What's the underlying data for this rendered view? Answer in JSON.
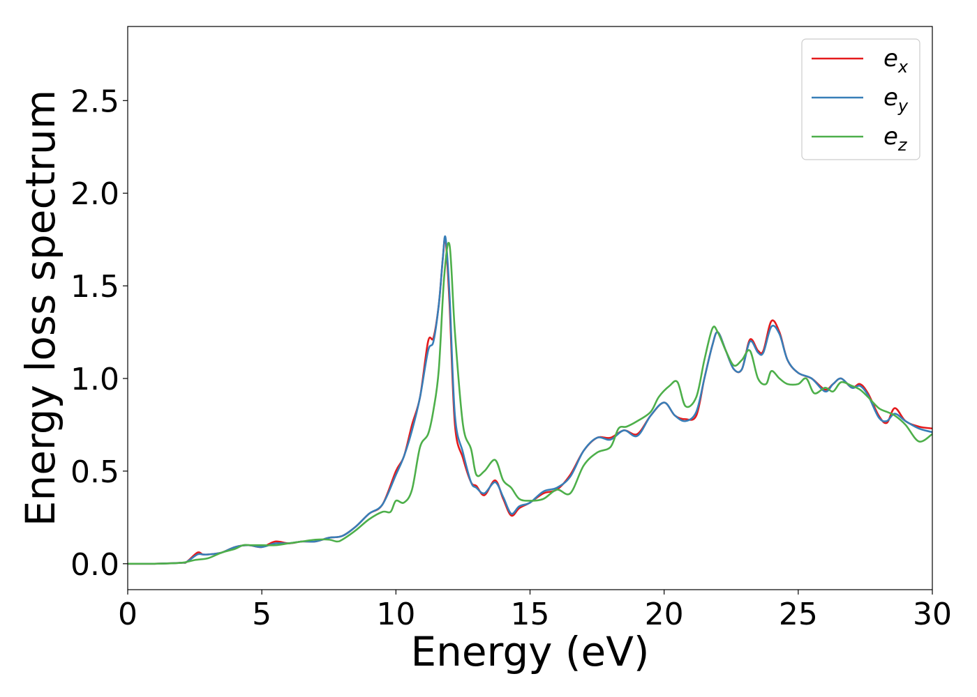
{
  "chart_data": {
    "type": "line",
    "xlabel": "Energy (eV)",
    "ylabel": "Energy loss spectrum",
    "xlim": [
      0,
      30
    ],
    "ylim": [
      -0.14,
      2.9
    ],
    "xticks": [
      "0",
      "5",
      "10",
      "15",
      "20",
      "25",
      "30"
    ],
    "xtick_values": [
      0,
      5,
      10,
      15,
      20,
      25,
      30
    ],
    "yticks": [
      "0.0",
      "0.5",
      "1.0",
      "1.5",
      "2.0",
      "2.5"
    ],
    "ytick_values": [
      0.0,
      0.5,
      1.0,
      1.5,
      2.0,
      2.5
    ],
    "grid": false,
    "legend_position": "top-right",
    "series": [
      {
        "name": "e_x",
        "label_base": "e",
        "label_sub": "x",
        "color": "#e41a1c",
        "x": [
          0,
          1,
          2,
          2.2,
          2.6,
          2.8,
          3.0,
          3.5,
          4.0,
          4.5,
          5.0,
          5.5,
          6.0,
          6.5,
          7.0,
          7.5,
          8.0,
          8.5,
          9.0,
          9.5,
          10.0,
          10.3,
          10.6,
          10.9,
          11.2,
          11.4,
          11.6,
          11.75,
          11.85,
          12.0,
          12.2,
          12.5,
          12.8,
          13.0,
          13.3,
          13.7,
          14.0,
          14.3,
          14.6,
          15.0,
          15.5,
          16.0,
          16.5,
          17.0,
          17.5,
          18.0,
          18.5,
          19.0,
          19.5,
          20.0,
          20.4,
          20.8,
          21.2,
          21.5,
          21.8,
          22.0,
          22.3,
          22.6,
          22.9,
          23.2,
          23.5,
          23.7,
          24.0,
          24.3,
          24.6,
          25.0,
          25.5,
          26.0,
          26.3,
          26.6,
          27.0,
          27.3,
          27.6,
          28.0,
          28.3,
          28.6,
          29.0,
          29.5,
          30.0
        ],
        "y": [
          0.0,
          0.0,
          0.005,
          0.01,
          0.06,
          0.05,
          0.05,
          0.06,
          0.09,
          0.1,
          0.09,
          0.12,
          0.11,
          0.12,
          0.12,
          0.14,
          0.15,
          0.2,
          0.27,
          0.32,
          0.5,
          0.58,
          0.75,
          0.9,
          1.2,
          1.22,
          1.4,
          1.65,
          1.75,
          1.4,
          0.75,
          0.57,
          0.44,
          0.42,
          0.37,
          0.45,
          0.35,
          0.26,
          0.3,
          0.33,
          0.38,
          0.4,
          0.48,
          0.61,
          0.68,
          0.68,
          0.72,
          0.7,
          0.8,
          0.87,
          0.8,
          0.78,
          0.8,
          1.0,
          1.18,
          1.25,
          1.15,
          1.05,
          1.05,
          1.21,
          1.15,
          1.15,
          1.31,
          1.25,
          1.1,
          1.03,
          1.0,
          0.94,
          0.97,
          1.0,
          0.95,
          0.97,
          0.92,
          0.8,
          0.76,
          0.84,
          0.77,
          0.74,
          0.73
        ]
      },
      {
        "name": "e_y",
        "label_base": "e",
        "label_sub": "y",
        "color": "#377eb8",
        "x": [
          0,
          1,
          2,
          2.2,
          2.6,
          2.8,
          3.0,
          3.5,
          4.0,
          4.5,
          5.0,
          5.5,
          6.0,
          6.5,
          7.0,
          7.5,
          8.0,
          8.5,
          9.0,
          9.5,
          10.0,
          10.3,
          10.6,
          10.9,
          11.2,
          11.4,
          11.6,
          11.75,
          11.85,
          12.0,
          12.2,
          12.5,
          12.8,
          13.0,
          13.3,
          13.7,
          14.0,
          14.3,
          14.6,
          15.0,
          15.5,
          16.0,
          16.5,
          17.0,
          17.5,
          18.0,
          18.5,
          19.0,
          19.5,
          20.0,
          20.4,
          20.8,
          21.2,
          21.5,
          21.8,
          22.0,
          22.3,
          22.6,
          22.9,
          23.2,
          23.5,
          23.7,
          24.0,
          24.3,
          24.6,
          25.0,
          25.5,
          26.0,
          26.3,
          26.6,
          27.0,
          27.3,
          27.6,
          28.0,
          28.3,
          28.6,
          29.0,
          29.5,
          30.0
        ],
        "y": [
          0.0,
          0.0,
          0.005,
          0.01,
          0.05,
          0.05,
          0.05,
          0.06,
          0.09,
          0.1,
          0.09,
          0.11,
          0.11,
          0.12,
          0.12,
          0.14,
          0.15,
          0.2,
          0.27,
          0.32,
          0.48,
          0.58,
          0.72,
          0.9,
          1.15,
          1.2,
          1.4,
          1.65,
          1.76,
          1.45,
          0.8,
          0.6,
          0.44,
          0.41,
          0.38,
          0.44,
          0.36,
          0.27,
          0.31,
          0.33,
          0.39,
          0.41,
          0.47,
          0.61,
          0.68,
          0.67,
          0.72,
          0.69,
          0.8,
          0.87,
          0.8,
          0.77,
          0.82,
          1.0,
          1.18,
          1.25,
          1.15,
          1.05,
          1.05,
          1.2,
          1.14,
          1.14,
          1.28,
          1.24,
          1.1,
          1.03,
          1.0,
          0.93,
          0.97,
          1.0,
          0.95,
          0.96,
          0.91,
          0.79,
          0.77,
          0.81,
          0.77,
          0.73,
          0.71
        ]
      },
      {
        "name": "e_z",
        "label_base": "e",
        "label_sub": "z",
        "color": "#4daf4a",
        "x": [
          0,
          1,
          2,
          2.5,
          3.0,
          3.5,
          4.0,
          4.3,
          4.6,
          5.0,
          5.5,
          6.0,
          6.5,
          7.0,
          7.5,
          7.8,
          8.0,
          8.5,
          9.0,
          9.5,
          9.8,
          10.0,
          10.3,
          10.6,
          10.9,
          11.2,
          11.4,
          11.6,
          11.8,
          12.0,
          12.2,
          12.5,
          12.8,
          13.0,
          13.3,
          13.7,
          14.0,
          14.3,
          14.6,
          15.0,
          15.5,
          16.0,
          16.5,
          17.0,
          17.5,
          18.0,
          18.3,
          18.6,
          19.0,
          19.5,
          19.8,
          20.2,
          20.5,
          20.8,
          21.2,
          21.5,
          21.8,
          22.0,
          22.3,
          22.6,
          22.9,
          23.2,
          23.5,
          23.8,
          24.0,
          24.3,
          24.6,
          25.0,
          25.3,
          25.6,
          26.0,
          26.3,
          26.6,
          27.0,
          27.3,
          27.6,
          28.0,
          28.3,
          28.6,
          29.0,
          29.5,
          30.0
        ],
        "y": [
          0.0,
          0.0,
          0.005,
          0.02,
          0.03,
          0.06,
          0.08,
          0.1,
          0.1,
          0.1,
          0.1,
          0.11,
          0.12,
          0.13,
          0.13,
          0.12,
          0.13,
          0.18,
          0.24,
          0.28,
          0.28,
          0.34,
          0.33,
          0.4,
          0.63,
          0.7,
          0.83,
          1.05,
          1.55,
          1.72,
          1.25,
          0.75,
          0.62,
          0.48,
          0.5,
          0.56,
          0.45,
          0.41,
          0.35,
          0.34,
          0.35,
          0.4,
          0.38,
          0.53,
          0.6,
          0.63,
          0.73,
          0.74,
          0.77,
          0.82,
          0.9,
          0.96,
          0.98,
          0.85,
          0.9,
          1.1,
          1.27,
          1.25,
          1.15,
          1.07,
          1.1,
          1.15,
          1.0,
          0.97,
          1.04,
          1.0,
          0.97,
          0.97,
          1.0,
          0.92,
          0.95,
          0.93,
          0.98,
          0.96,
          0.94,
          0.9,
          0.84,
          0.82,
          0.8,
          0.75,
          0.66,
          0.7
        ]
      }
    ]
  }
}
